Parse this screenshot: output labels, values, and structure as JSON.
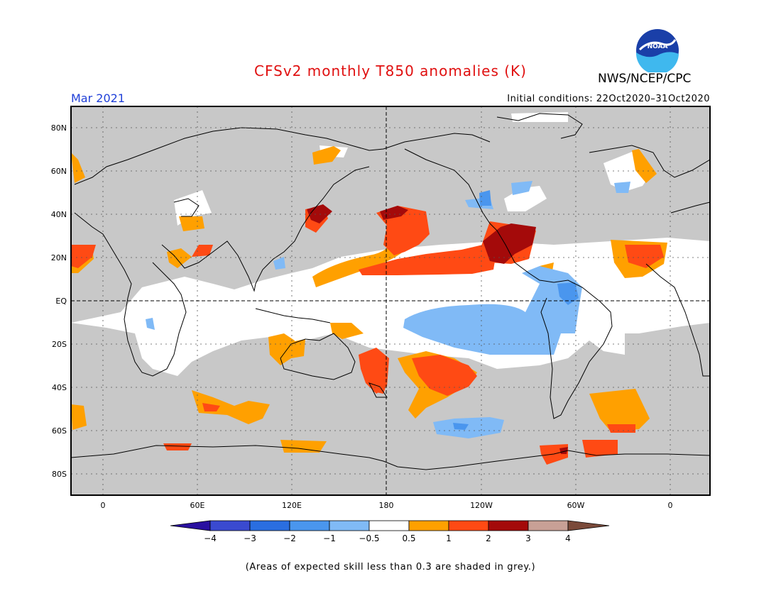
{
  "title": "CFSv2 monthly T850 anomalies (K)",
  "month": "Mar 2021",
  "initial_conditions": "Initial conditions: 22Oct2020–31Oct2020",
  "agency": "NWS/NCEP/CPC",
  "logo_text": "NOAA",
  "footnote": "(Areas of expected skill less than 0.3 are shaded in grey.)",
  "lat_labels": [
    "80N",
    "60N",
    "40N",
    "20N",
    "EQ",
    "20S",
    "40S",
    "60S",
    "80S"
  ],
  "lon_labels": [
    "0",
    "60E",
    "120E",
    "180",
    "120W",
    "60W",
    "0"
  ],
  "colorbar": {
    "labels": [
      "−4",
      "−3",
      "−2",
      "−1",
      "−0.5",
      "0.5",
      "1",
      "2",
      "3",
      "4"
    ],
    "colors": [
      "#2a10a0",
      "#3a4ad0",
      "#2a6ee0",
      "#4a96ee",
      "#80baf6",
      "#ffffff",
      "#ffa000",
      "#ff4a14",
      "#a40a0a",
      "#c8a096",
      "#7a4a3a"
    ]
  },
  "colors": {
    "skill_grey": "#c8c8c8",
    "title_red": "#e01010",
    "month_blue": "#1f3fd8"
  }
}
